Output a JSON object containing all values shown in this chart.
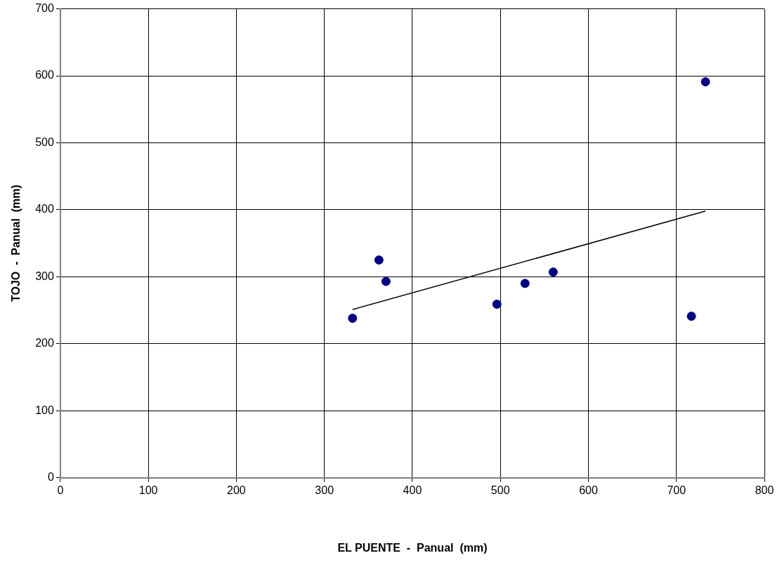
{
  "chart_data": {
    "type": "scatter",
    "xlabel": "EL PUENTE  -  Panual  (mm)",
    "ylabel": "TOJO  -  Panual  (mm)",
    "xlim": [
      0,
      800
    ],
    "xticks": [
      0,
      100,
      200,
      300,
      400,
      500,
      600,
      700,
      800
    ],
    "ylim": [
      0,
      700
    ],
    "yticks": [
      0,
      100,
      200,
      300,
      400,
      500,
      600,
      700
    ],
    "grid": true,
    "legend": false,
    "marker": "circle",
    "series": [
      {
        "color": "#000080",
        "x": [
          332,
          362,
          370,
          496,
          528,
          560,
          717,
          733
        ],
        "values": [
          238,
          325,
          293,
          259,
          290,
          307,
          241,
          591
        ]
      },
      {
        "type": "line",
        "color": "#000000",
        "marker": "none",
        "line_style": "solid",
        "x": [
          332,
          733
        ],
        "values": [
          251,
          398
        ]
      }
    ]
  }
}
